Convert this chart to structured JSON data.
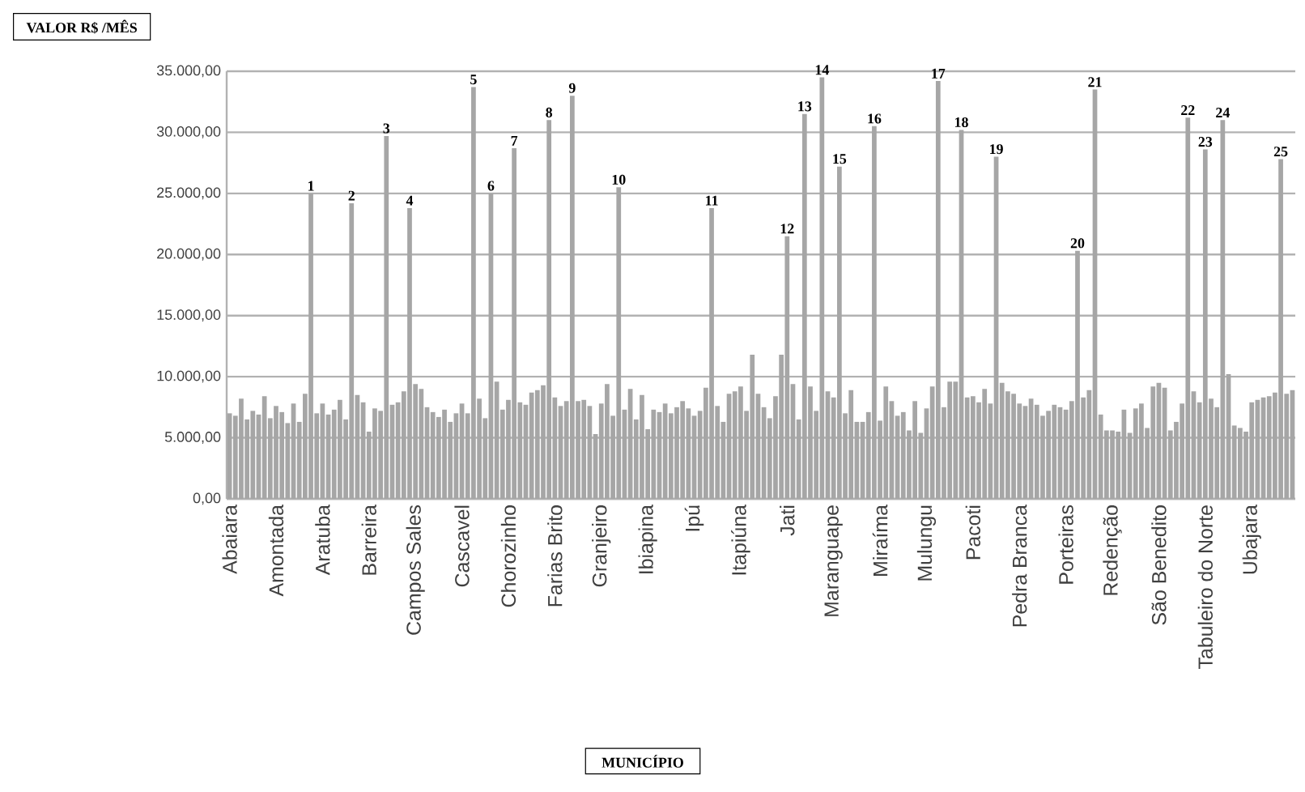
{
  "chart_data": {
    "type": "bar",
    "ylabel": "VALOR R$ /MÊS",
    "color": "#a6a6a6",
    "grid": "y",
    "ylim": [
      0,
      35000
    ],
    "yticks": [
      {
        "value": 0,
        "label": "0,00"
      },
      {
        "value": 5000,
        "label": "5.000,00"
      },
      {
        "value": 10000,
        "label": "10.000,00"
      },
      {
        "value": 15000,
        "label": "15.000,00"
      },
      {
        "value": 20000,
        "label": "20.000,00"
      },
      {
        "value": 25000,
        "label": "25.000,00"
      },
      {
        "value": 30000,
        "label": "30.000,00"
      },
      {
        "value": 35000,
        "label": "35.000,00"
      }
    ],
    "categories": [
      "Abaiara",
      null,
      null,
      null,
      null,
      null,
      null,
      null,
      "Amontada",
      null,
      null,
      null,
      null,
      null,
      null,
      null,
      "Aratuba",
      null,
      null,
      null,
      null,
      null,
      null,
      null,
      "Barreira",
      null,
      null,
      null,
      null,
      null,
      null,
      null,
      "Campos Sales",
      null,
      null,
      null,
      null,
      null,
      null,
      null,
      "Cascavel",
      null,
      null,
      null,
      null,
      null,
      null,
      null,
      "Chorozinho",
      null,
      null,
      null,
      null,
      null,
      null,
      null,
      "Farias Brito",
      null,
      null,
      null,
      null,
      null,
      null,
      null,
      "Granjeiro",
      null,
      null,
      null,
      null,
      null,
      null,
      null,
      "Ibiapina",
      null,
      null,
      null,
      null,
      null,
      null,
      null,
      "Ipú",
      null,
      null,
      null,
      null,
      null,
      null,
      null,
      "Itapiúna",
      null,
      null,
      null,
      null,
      null,
      null,
      null,
      "Jati",
      null,
      null,
      null,
      null,
      null,
      null,
      null,
      "Maranguape",
      null,
      null,
      null,
      null,
      null,
      null,
      null,
      "Miraíma",
      null,
      null,
      null,
      null,
      null,
      null,
      null,
      "Mulungu",
      null,
      null,
      null,
      null,
      null,
      null,
      null,
      "Pacoti",
      null,
      null,
      null,
      null,
      null,
      null,
      null,
      "Pedra Branca",
      null,
      null,
      null,
      null,
      null,
      null,
      null,
      "Porteiras",
      null,
      null,
      null,
      null,
      null,
      null,
      null,
      "Redenção",
      null,
      null,
      null,
      null,
      null,
      null,
      null,
      "São Benedito",
      null,
      null,
      null,
      null,
      null,
      null,
      null,
      "Tabuleiro do Norte",
      null,
      null,
      null,
      null,
      null,
      null,
      null,
      "Ubajara",
      null,
      null,
      null,
      null,
      null,
      null,
      null
    ],
    "values": [
      7000,
      6800,
      8200,
      6500,
      7200,
      6900,
      8400,
      6600,
      7600,
      7100,
      6200,
      7800,
      6300,
      8600,
      25000,
      7000,
      7800,
      6900,
      7300,
      8100,
      6500,
      24200,
      8500,
      7900,
      5500,
      7400,
      7200,
      29700,
      7700,
      7900,
      8800,
      23800,
      9400,
      9000,
      7500,
      7100,
      6700,
      7300,
      6300,
      7000,
      7800,
      7000,
      33700,
      8200,
      6600,
      25000,
      9600,
      7300,
      8100,
      28700,
      7900,
      7700,
      8700,
      8900,
      9300,
      31000,
      8300,
      7600,
      8000,
      33000,
      8000,
      8100,
      7600,
      5300,
      7800,
      9400,
      6800,
      25500,
      7300,
      9000,
      6500,
      8500,
      5700,
      7300,
      7100,
      7800,
      7000,
      7500,
      8000,
      7400,
      6800,
      7200,
      9100,
      23800,
      7600,
      6300,
      8600,
      8800,
      9200,
      7200,
      11800,
      8600,
      7500,
      6600,
      8400,
      11800,
      21500,
      9400,
      6500,
      31500,
      9200,
      7200,
      34500,
      8800,
      8300,
      27200,
      7000,
      8900,
      6300,
      6300,
      7100,
      30500,
      6400,
      9200,
      8000,
      6800,
      7100,
      5600,
      8000,
      5400,
      7400,
      9200,
      34200,
      7500,
      9600,
      9600,
      30200,
      8300,
      8400,
      7900,
      9000,
      7800,
      28000,
      9500,
      8800,
      8600,
      7800,
      7600,
      8200,
      7700,
      6800,
      7200,
      7700,
      7500,
      7300,
      8000,
      20300,
      8300,
      8900,
      33500,
      6900,
      5600,
      5600,
      5500,
      7300,
      5400,
      7400,
      7800,
      5800,
      9200,
      9500,
      9100,
      5600,
      6300,
      7800,
      31200,
      8800,
      7900,
      28600,
      8200,
      7500,
      31000,
      10200,
      6000,
      5800,
      5500,
      7900,
      8100,
      8300,
      8400,
      8700,
      27800,
      8600,
      8900
    ],
    "annotations": [
      {
        "text": "1",
        "y": 25000
      },
      {
        "text": "2",
        "y": 24200
      },
      {
        "text": "3",
        "y": 29700
      },
      {
        "text": "4",
        "y": 23800
      },
      {
        "text": "5",
        "y": 33700
      },
      {
        "text": "6",
        "y": 25000
      },
      {
        "text": "7",
        "y": 28700
      },
      {
        "text": "8",
        "y": 31000
      },
      {
        "text": "9",
        "y": 33000
      },
      {
        "text": "10",
        "y": 25500
      },
      {
        "text": "11",
        "y": 23800
      },
      {
        "text": "12",
        "y": 21500
      },
      {
        "text": "13",
        "y": 31500
      },
      {
        "text": "14",
        "y": 34500
      },
      {
        "text": "15",
        "y": 27200
      },
      {
        "text": "16",
        "y": 30500
      },
      {
        "text": "17",
        "y": 34200
      },
      {
        "text": "18",
        "y": 30200
      },
      {
        "text": "19",
        "y": 28000
      },
      {
        "text": "20",
        "y": 20300
      },
      {
        "text": "21",
        "y": 33500
      },
      {
        "text": "22",
        "y": 31200
      },
      {
        "text": "23",
        "y": 28600
      },
      {
        "text": "24",
        "y": 31000
      },
      {
        "text": "25",
        "y": 27800
      },
      "MUNICÍPIO"
    ]
  }
}
